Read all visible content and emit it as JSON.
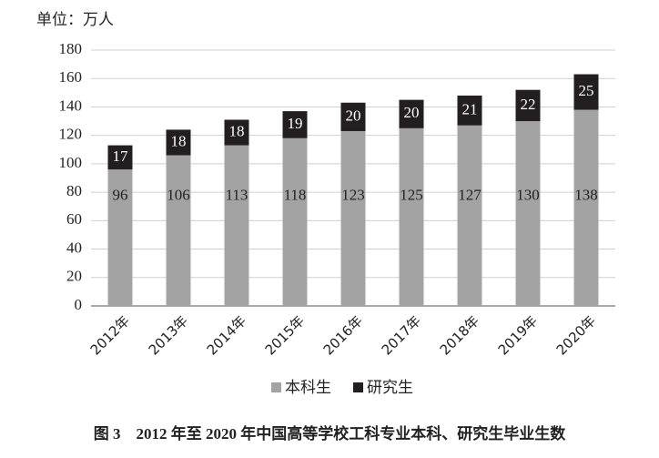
{
  "chart_data": {
    "type": "bar",
    "stacked": true,
    "title": "图 3　2012 年至 2020 年中国高等学校工科专业本科、研究生毕业生数",
    "unit": "单位：万人",
    "categories": [
      "2012年",
      "2013年",
      "2014年",
      "2015年",
      "2016年",
      "2017年",
      "2018年",
      "2019年",
      "2020年"
    ],
    "series": [
      {
        "name": "本科生",
        "color": "#a3a3a3",
        "values": [
          96,
          106,
          113,
          118,
          123,
          125,
          127,
          130,
          138
        ]
      },
      {
        "name": "研究生",
        "color": "#231f20",
        "values": [
          17,
          18,
          18,
          19,
          20,
          20,
          21,
          22,
          25
        ]
      }
    ],
    "ylim": [
      0,
      180
    ],
    "yticks": [
      0,
      20,
      40,
      60,
      80,
      100,
      120,
      140,
      160,
      180
    ],
    "grid": true
  }
}
